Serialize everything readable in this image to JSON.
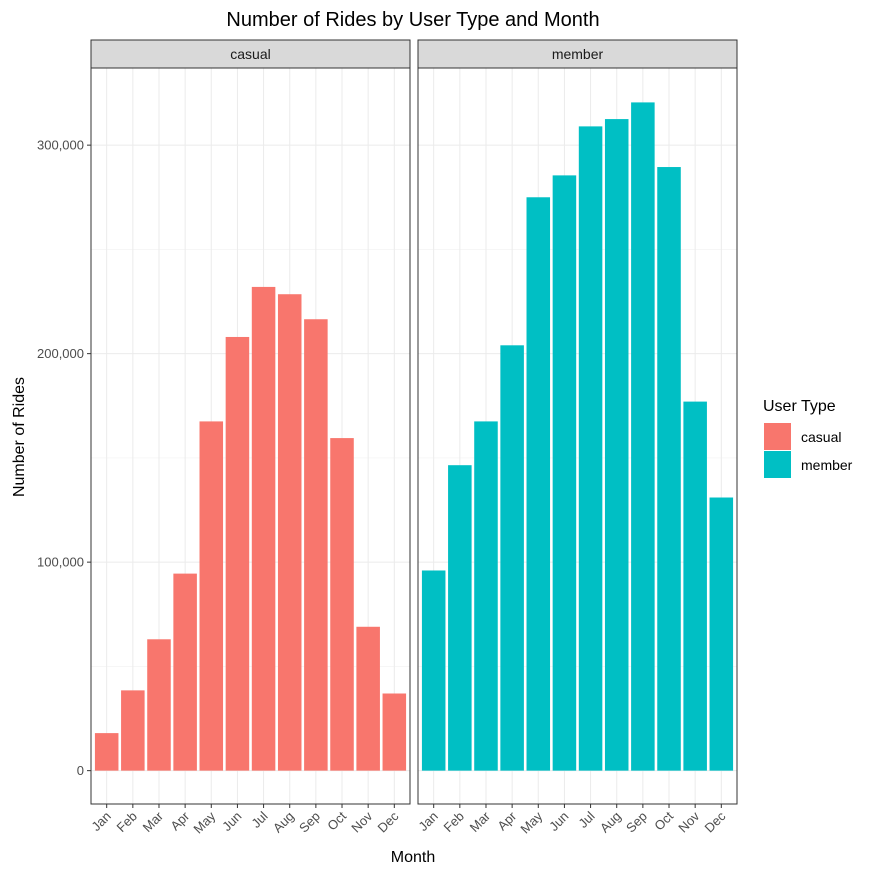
{
  "chart_data": {
    "type": "bar",
    "title": "Number of Rides by User Type and Month",
    "xlabel": "Month",
    "ylabel": "Number of Rides",
    "categories": [
      "Jan",
      "Feb",
      "Mar",
      "Apr",
      "May",
      "Jun",
      "Jul",
      "Aug",
      "Sep",
      "Oct",
      "Nov",
      "Dec"
    ],
    "facets": [
      "casual",
      "member"
    ],
    "series": [
      {
        "name": "casual",
        "color": "#F8766D",
        "values": [
          18000,
          38500,
          63000,
          94500,
          167500,
          208000,
          232000,
          228500,
          216500,
          159500,
          69000,
          37000
        ]
      },
      {
        "name": "member",
        "color": "#00BFC4",
        "values": [
          96000,
          146500,
          167500,
          204000,
          275000,
          285500,
          309000,
          312500,
          320500,
          289500,
          177000,
          131000
        ]
      }
    ],
    "ylim": [
      -16000,
      337000
    ],
    "yticks": [
      0,
      100000,
      200000,
      300000
    ],
    "ytick_labels": [
      "0",
      "100,000",
      "200,000",
      "300,000"
    ],
    "grid": true,
    "legend": {
      "title": "User Type",
      "position": "right"
    }
  }
}
